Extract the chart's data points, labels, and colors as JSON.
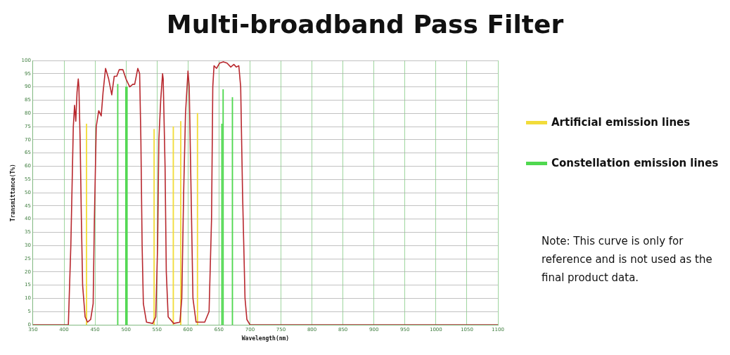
{
  "chart_data": {
    "type": "line",
    "title": "Multi-broadband Pass Filter",
    "xlabel": "Wavelength(nm)",
    "ylabel": "Transmittance(T%)",
    "xlim": [
      350,
      1100
    ],
    "xticks": [
      350,
      400,
      450,
      500,
      550,
      600,
      650,
      700,
      750,
      800,
      850,
      900,
      950,
      1000,
      1050,
      1100
    ],
    "ylim": [
      0,
      100
    ],
    "yticks": [
      0,
      5,
      10,
      15,
      20,
      25,
      30,
      35,
      40,
      45,
      50,
      55,
      60,
      65,
      70,
      75,
      80,
      85,
      90,
      95,
      100
    ],
    "grid": true,
    "legend": "right",
    "marker": "none",
    "line_style": "solid",
    "series": [
      {
        "color": "#b8282e",
        "x": [
          350,
          405,
          407,
          411,
          415,
          417,
          419,
          421,
          423,
          424,
          426,
          428,
          430,
          434,
          438,
          443,
          447,
          449,
          452,
          456,
          460,
          463,
          467,
          472,
          477,
          481,
          485,
          489,
          495,
          500,
          506,
          511,
          514,
          519,
          522,
          524,
          526,
          528,
          533,
          543,
          548,
          551,
          553,
          556,
          559,
          560,
          563,
          565,
          568,
          577,
          587,
          590,
          593,
          596,
          600,
          602,
          605,
          608,
          613,
          627,
          634,
          638,
          640,
          642,
          646,
          651,
          657,
          663,
          669,
          674,
          678,
          682,
          685,
          688,
          692,
          695,
          700,
          1100
        ],
        "values": [
          0,
          0,
          0,
          30,
          75,
          83,
          77,
          88,
          93,
          90,
          70,
          40,
          15,
          3,
          1,
          2,
          8,
          40,
          75,
          81,
          79,
          88,
          97,
          93,
          87,
          94,
          94,
          96.5,
          96.5,
          93,
          90,
          91,
          91,
          97,
          95,
          70,
          30,
          8,
          1,
          0.5,
          3,
          30,
          70,
          85,
          95,
          93,
          60,
          20,
          3,
          0.5,
          1,
          10,
          50,
          80,
          96,
          90,
          50,
          10,
          1,
          1,
          5,
          40,
          90,
          98,
          97,
          99,
          99.5,
          99,
          97.5,
          98.5,
          97.5,
          98,
          90,
          50,
          10,
          2,
          0,
          0
        ]
      },
      {
        "type": "bar",
        "name": "Artificial emission lines",
        "color": "#f2dc3a",
        "x": [
          437,
          546,
          577,
          589,
          616
        ],
        "values": [
          76,
          74,
          75,
          77,
          80
        ]
      },
      {
        "type": "bar",
        "name": "Constellation emission lines",
        "color": "#4fd84f",
        "x": [
          486,
          499,
          501,
          654,
          656,
          671
        ],
        "values": [
          91,
          90,
          90,
          76,
          89,
          86
        ]
      }
    ],
    "annotations": [
      "Note: This curve is only for reference and is not used as the final product data."
    ]
  }
}
